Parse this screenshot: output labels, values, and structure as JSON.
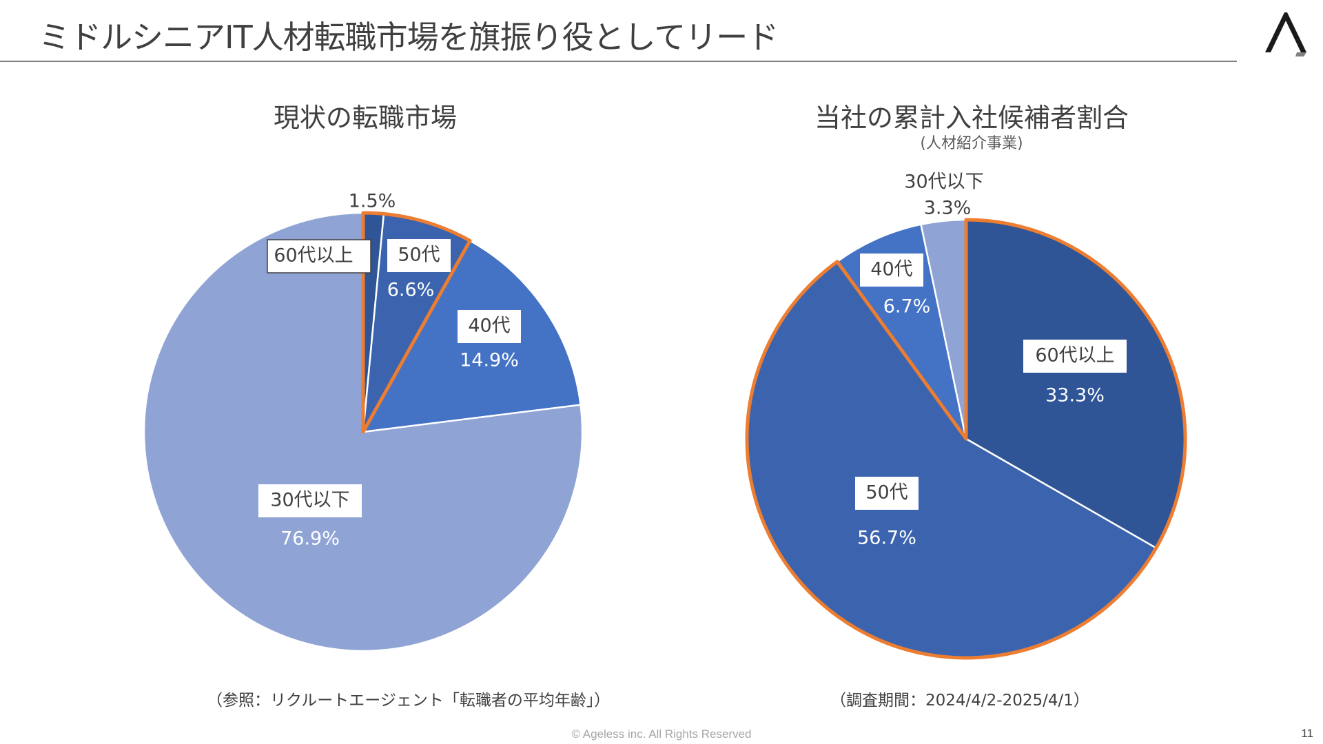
{
  "page": {
    "title": "ミドルシニアIT人材転職市場を旗振り役としてリード",
    "footer": "© Ageless inc. All Rights Reserved",
    "page_number": "11"
  },
  "left_chart": {
    "title": "現状の転職市場",
    "source_note": "（参照：リクルートエージェント「転職者の平均年齢」）"
  },
  "right_chart": {
    "title": "当社の累計入社候補者割合",
    "subtitle": "(人材紹介事業)",
    "period_note": "（調査期間：2024/4/2-2025/4/1）"
  },
  "colors": {
    "s60": "#2f5597",
    "s50": "#3c64ae",
    "s40": "#4472c4",
    "s30": "#8fa4d4",
    "highlight": "#ed7d31"
  },
  "chart_data": [
    {
      "type": "pie",
      "title": "現状の転職市場",
      "categories": [
        "60代以上",
        "50代",
        "40代",
        "30代以下"
      ],
      "values": [
        1.5,
        6.6,
        14.9,
        76.9
      ],
      "labels": [
        "1.5%",
        "6.6%",
        "14.9%",
        "76.9%"
      ],
      "highlighted": [
        "60代以上",
        "50代"
      ]
    },
    {
      "type": "pie",
      "title": "当社の累計入社候補者割合",
      "categories": [
        "60代以上",
        "50代",
        "40代",
        "30代以下"
      ],
      "values": [
        33.3,
        56.7,
        6.7,
        3.3
      ],
      "labels": [
        "33.3%",
        "56.7%",
        "6.7%",
        "3.3%"
      ],
      "highlighted": [
        "60代以上",
        "50代"
      ]
    }
  ]
}
